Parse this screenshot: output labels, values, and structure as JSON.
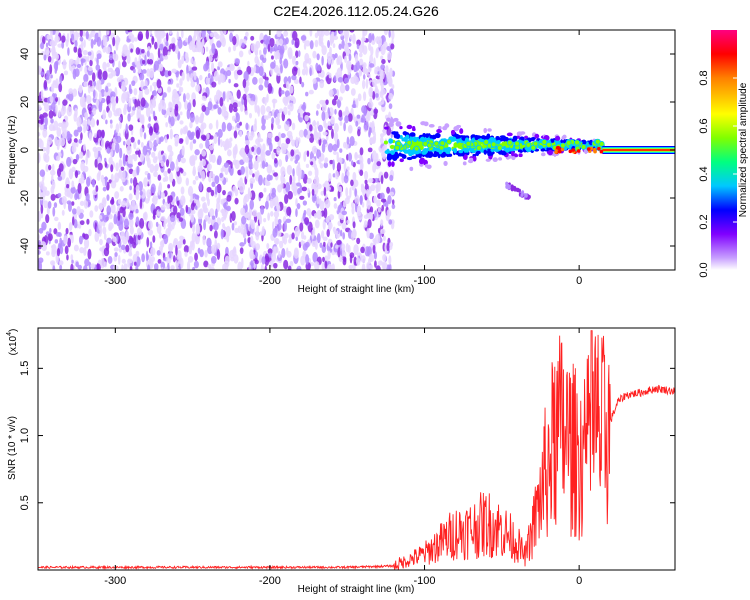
{
  "chart_data": [
    {
      "type": "heatmap",
      "title": "C2E4.2026.112.05.24.G26",
      "xlabel": "Height of straight line (km)",
      "ylabel": "Frequency (Hz)",
      "xlim": [
        -350,
        62
      ],
      "ylim": [
        -50,
        50
      ],
      "x_ticks": [
        -300,
        -200,
        -100,
        0
      ],
      "y_ticks": [
        -40,
        -20,
        0,
        20,
        40
      ],
      "colorbar": {
        "label": "Normalized spectral amplitude",
        "ticks": [
          0.0,
          0.2,
          0.4,
          0.6,
          0.8
        ],
        "range": [
          0,
          1
        ],
        "colors": [
          "#ffffff",
          "#c8a0ff",
          "#8000ff",
          "#0000ff",
          "#00c8ff",
          "#00ff80",
          "#80ff00",
          "#ffff00",
          "#ff8000",
          "#ff0000",
          "#ff0080"
        ]
      },
      "regions": [
        {
          "name": "noise",
          "x_range": [
            -350,
            -125
          ],
          "freq_range": [
            -50,
            50
          ],
          "amplitude": [
            0.0,
            0.05
          ]
        },
        {
          "name": "signal-onset",
          "x_range": [
            -125,
            15
          ],
          "center_freq": 2,
          "amplitude": [
            0.3,
            0.5
          ]
        },
        {
          "name": "secondary-blob",
          "x_range": [
            -48,
            -32
          ],
          "freq_range": [
            -20,
            -14
          ],
          "amplitude": [
            0.05,
            0.1
          ]
        },
        {
          "name": "clean-carrier",
          "x_range": [
            15,
            62
          ],
          "center_freq": 0,
          "amplitude": [
            0.9,
            1.0
          ]
        }
      ]
    },
    {
      "type": "line",
      "title": "",
      "xlabel": "Height of straight line (km)",
      "ylabel": "SNR (10 * v/v)",
      "multiplier_label": "(x10",
      "multiplier_exp": "4",
      "multiplier_close": ")",
      "xlim": [
        -350,
        62
      ],
      "ylim": [
        0,
        1.8
      ],
      "x_ticks": [
        -300,
        -200,
        -100,
        0
      ],
      "y_ticks": [
        0.5,
        1.0,
        1.5
      ],
      "y_tick_labels": [
        "0.5",
        "1.0",
        "1.5"
      ],
      "series": [
        {
          "name": "SNR",
          "color": "#ff2020",
          "x": [
            -350,
            -300,
            -250,
            -200,
            -150,
            -120,
            -100,
            -90,
            -80,
            -70,
            -60,
            -50,
            -40,
            -35,
            -30,
            -25,
            -20,
            -15,
            -10,
            -5,
            0,
            5,
            10,
            15,
            20,
            25,
            30,
            40,
            50,
            62
          ],
          "y": [
            0.02,
            0.02,
            0.02,
            0.02,
            0.02,
            0.03,
            0.12,
            0.2,
            0.28,
            0.3,
            0.35,
            0.3,
            0.2,
            0.1,
            0.3,
            0.55,
            0.8,
            1.0,
            1.05,
            0.9,
            0.85,
            0.9,
            1.1,
            1.0,
            1.1,
            1.25,
            1.3,
            1.32,
            1.35,
            1.33
          ]
        }
      ]
    }
  ]
}
